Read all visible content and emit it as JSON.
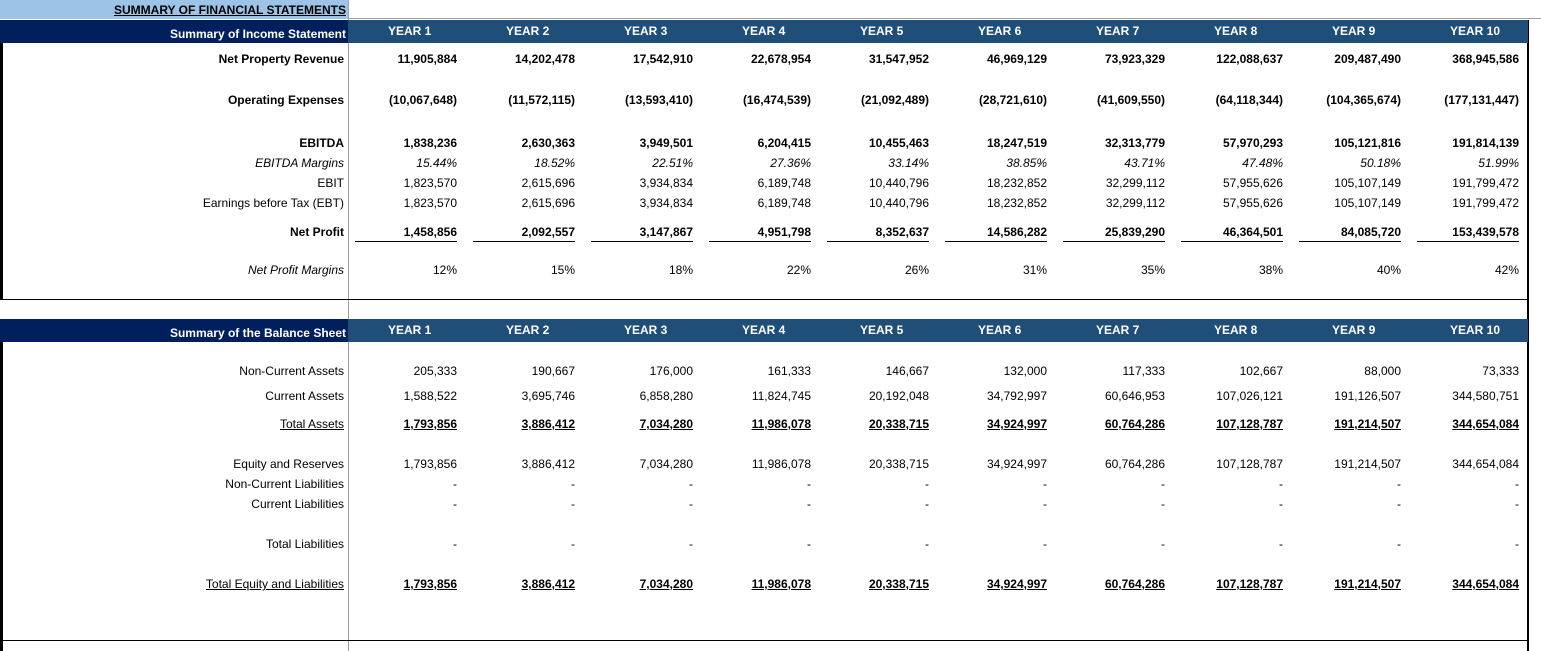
{
  "title": "SUMMARY OF FINANCIAL STATEMENTS",
  "income": {
    "header": "Summary of Income Statement",
    "years": [
      "YEAR 1",
      "YEAR 2",
      "YEAR 3",
      "YEAR 4",
      "YEAR 5",
      "YEAR 6",
      "YEAR 7",
      "YEAR 8",
      "YEAR 9",
      "YEAR 10"
    ],
    "rows": [
      {
        "label": "Net Property Revenue",
        "values": [
          "11,905,884",
          "14,202,478",
          "17,542,910",
          "22,678,954",
          "31,547,952",
          "46,969,129",
          "73,923,329",
          "122,088,637",
          "209,487,490",
          "368,945,586"
        ]
      },
      {
        "label": "Operating Expenses",
        "values": [
          "(10,067,648)",
          "(11,572,115)",
          "(13,593,410)",
          "(16,474,539)",
          "(21,092,489)",
          "(28,721,610)",
          "(41,609,550)",
          "(64,118,344)",
          "(104,365,674)",
          "(177,131,447)"
        ]
      },
      {
        "label": "EBITDA",
        "values": [
          "1,838,236",
          "2,630,363",
          "3,949,501",
          "6,204,415",
          "10,455,463",
          "18,247,519",
          "32,313,779",
          "57,970,293",
          "105,121,816",
          "191,814,139"
        ]
      },
      {
        "label": "EBITDA Margins",
        "values": [
          "15.44%",
          "18.52%",
          "22.51%",
          "27.36%",
          "33.14%",
          "38.85%",
          "43.71%",
          "47.48%",
          "50.18%",
          "51.99%"
        ]
      },
      {
        "label": "EBIT",
        "values": [
          "1,823,570",
          "2,615,696",
          "3,934,834",
          "6,189,748",
          "10,440,796",
          "18,232,852",
          "32,299,112",
          "57,955,626",
          "105,107,149",
          "191,799,472"
        ]
      },
      {
        "label": "Earnings before Tax (EBT)",
        "values": [
          "1,823,570",
          "2,615,696",
          "3,934,834",
          "6,189,748",
          "10,440,796",
          "18,232,852",
          "32,299,112",
          "57,955,626",
          "105,107,149",
          "191,799,472"
        ]
      },
      {
        "label": "Net Profit",
        "values": [
          "1,458,856",
          "2,092,557",
          "3,147,867",
          "4,951,798",
          "8,352,637",
          "14,586,282",
          "25,839,290",
          "46,364,501",
          "84,085,720",
          "153,439,578"
        ]
      },
      {
        "label": "Net Profit Margins",
        "values": [
          "12%",
          "15%",
          "18%",
          "22%",
          "26%",
          "31%",
          "35%",
          "38%",
          "40%",
          "42%"
        ]
      }
    ]
  },
  "balance": {
    "header": "Summary of the Balance Sheet",
    "years": [
      "YEAR 1",
      "YEAR 2",
      "YEAR 3",
      "YEAR 4",
      "YEAR 5",
      "YEAR 6",
      "YEAR 7",
      "YEAR 8",
      "YEAR 9",
      "YEAR 10"
    ],
    "rows": [
      {
        "label": "Non-Current Assets",
        "values": [
          "205,333",
          "190,667",
          "176,000",
          "161,333",
          "146,667",
          "132,000",
          "117,333",
          "102,667",
          "88,000",
          "73,333"
        ]
      },
      {
        "label": "Current Assets",
        "values": [
          "1,588,522",
          "3,695,746",
          "6,858,280",
          "11,824,745",
          "20,192,048",
          "34,792,997",
          "60,646,953",
          "107,026,121",
          "191,126,507",
          "344,580,751"
        ]
      },
      {
        "label": "Total Assets",
        "values": [
          "1,793,856",
          "3,886,412",
          "7,034,280",
          "11,986,078",
          "20,338,715",
          "34,924,997",
          "60,764,286",
          "107,128,787",
          "191,214,507",
          "344,654,084"
        ]
      },
      {
        "label": "Equity and Reserves",
        "values": [
          "1,793,856",
          "3,886,412",
          "7,034,280",
          "11,986,078",
          "20,338,715",
          "34,924,997",
          "60,764,286",
          "107,128,787",
          "191,214,507",
          "344,654,084"
        ]
      },
      {
        "label": "Non-Current Liabilities",
        "values": [
          "-",
          "-",
          "-",
          "-",
          "-",
          "-",
          "-",
          "-",
          "-",
          "-"
        ]
      },
      {
        "label": "Current Liabilities",
        "values": [
          "-",
          "-",
          "-",
          "-",
          "-",
          "-",
          "-",
          "-",
          "-",
          "-"
        ]
      },
      {
        "label": "Total Liabilities",
        "values": [
          "-",
          "-",
          "-",
          "-",
          "-",
          "-",
          "-",
          "-",
          "-",
          "-"
        ]
      },
      {
        "label": "Total Equity and Liabilities",
        "values": [
          "1,793,856",
          "3,886,412",
          "7,034,280",
          "11,986,078",
          "20,338,715",
          "34,924,997",
          "60,764,286",
          "107,128,787",
          "191,214,507",
          "344,654,084"
        ]
      }
    ]
  },
  "colors": {
    "title_bg": "#9dc3e6",
    "header_label_bg": "#001f5c",
    "header_years_bg": "#1f4e79"
  }
}
